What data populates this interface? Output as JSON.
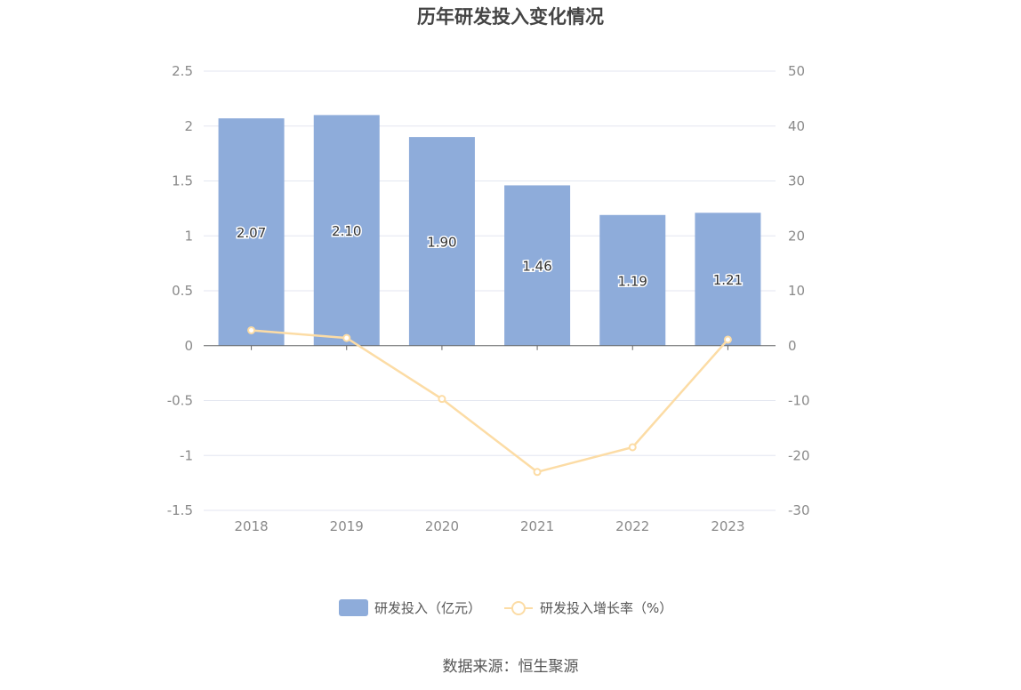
{
  "title": "历年研发投入变化情况",
  "source": "数据来源：恒生聚源",
  "colors": {
    "bar": "#8eacda",
    "line": "#fcdca5",
    "grid": "#e3e6f0",
    "axis": "#666666"
  },
  "chart_data": {
    "type": "bar",
    "title": "历年研发投入变化情况",
    "categories": [
      "2018",
      "2019",
      "2020",
      "2021",
      "2022",
      "2023"
    ],
    "series": [
      {
        "name": "研发投入（亿元）",
        "type": "bar",
        "axis": "left",
        "values": [
          2.07,
          2.1,
          1.9,
          1.46,
          1.19,
          1.21
        ],
        "labels": [
          "2.07",
          "2.10",
          "1.90",
          "1.46",
          "1.19",
          "1.21"
        ]
      },
      {
        "name": "研发投入增长率（%）",
        "type": "line",
        "axis": "right",
        "values": [
          2.8,
          1.4,
          -9.7,
          -23.0,
          -18.5,
          1.1
        ]
      }
    ],
    "y_left": {
      "min": -1.5,
      "max": 2.5,
      "ticks": [
        "2.5",
        "2",
        "1.5",
        "1",
        "0.5",
        "0",
        "-0.5",
        "-1",
        "-1.5"
      ]
    },
    "y_right": {
      "min": -30,
      "max": 50,
      "ticks": [
        "50",
        "40",
        "30",
        "20",
        "10",
        "0",
        "-10",
        "-20",
        "-30"
      ]
    },
    "legend_position": "bottom",
    "grid": true
  }
}
